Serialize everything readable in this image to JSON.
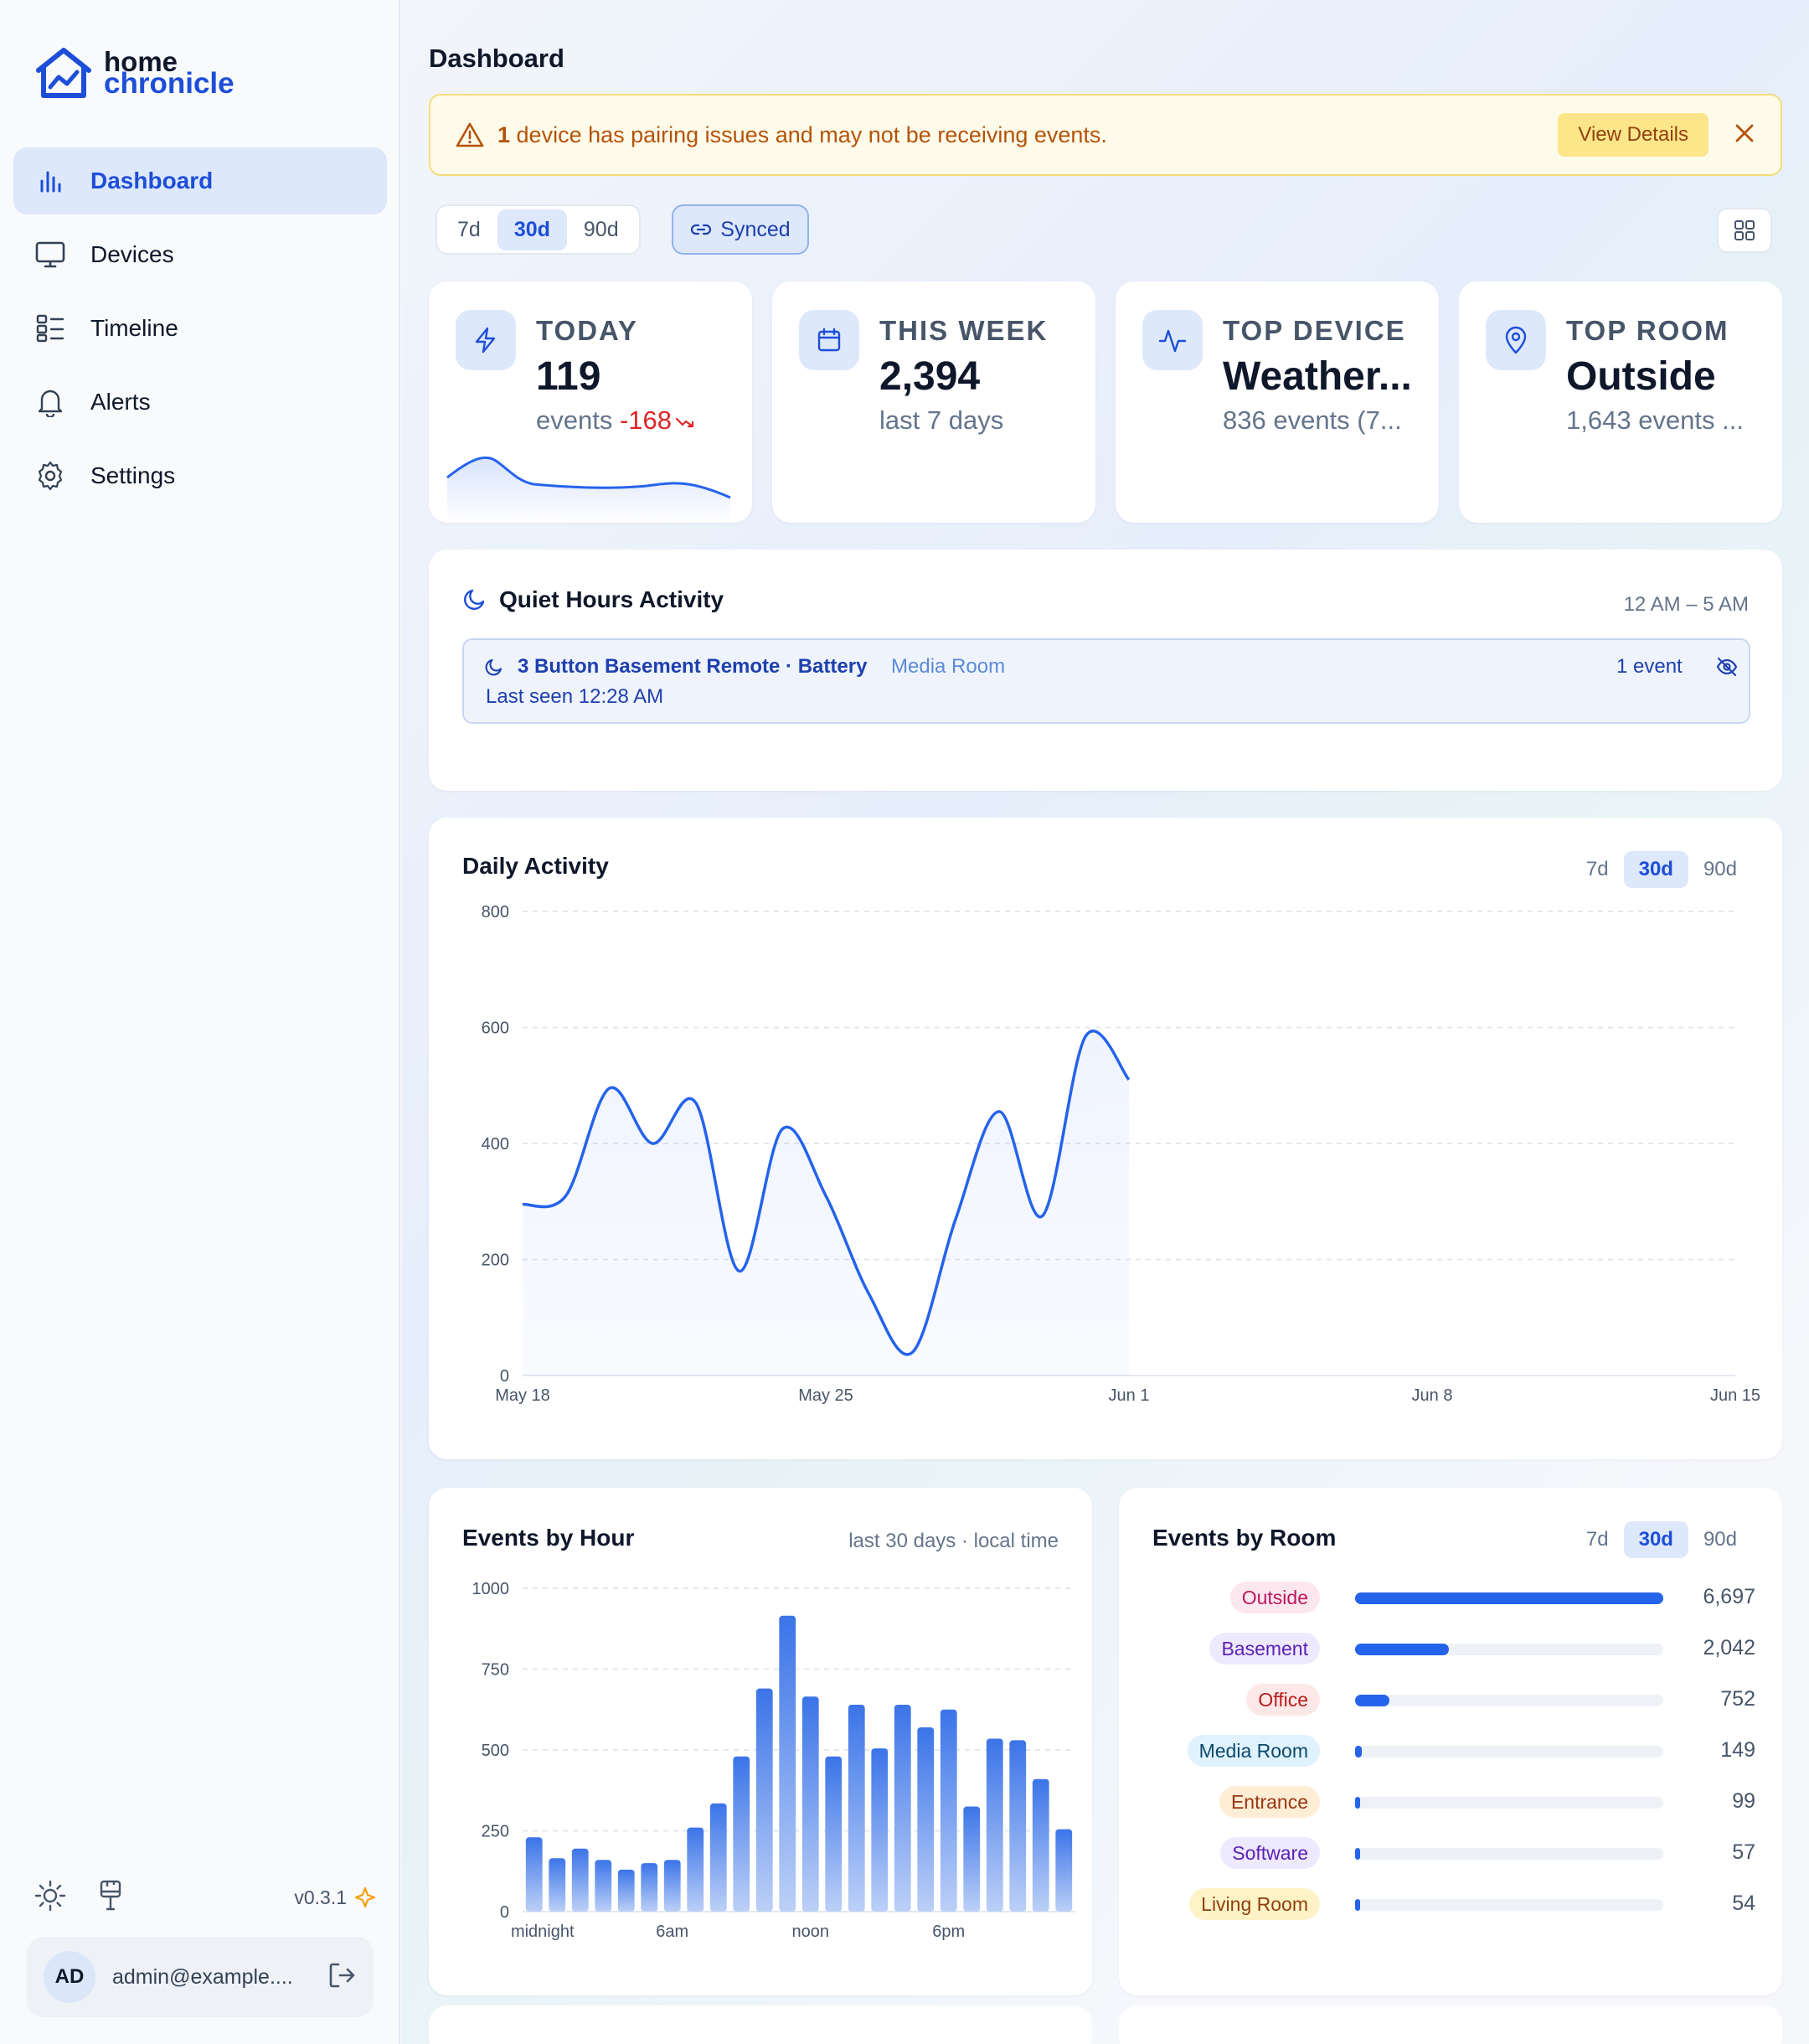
{
  "app": {
    "logo_line1": "home",
    "logo_line2": "chronicle",
    "version": "v0.3.1"
  },
  "nav": [
    {
      "label": "Dashboard",
      "icon": "bar-chart-icon",
      "active": true
    },
    {
      "label": "Devices",
      "icon": "monitor-icon",
      "active": false
    },
    {
      "label": "Timeline",
      "icon": "list-icon",
      "active": false
    },
    {
      "label": "Alerts",
      "icon": "bell-icon",
      "active": false
    },
    {
      "label": "Settings",
      "icon": "gear-icon",
      "active": false
    }
  ],
  "user": {
    "initials": "AD",
    "email": "admin@example...."
  },
  "page": {
    "title": "Dashboard"
  },
  "alert": {
    "count": "1",
    "message": " device has pairing issues and may not be receiving events.",
    "action": "View Details"
  },
  "range": {
    "options": [
      "7d",
      "30d",
      "90d"
    ],
    "selected": "30d"
  },
  "synced": {
    "label": "Synced"
  },
  "stats": [
    {
      "label": "TODAY",
      "value": "119",
      "sub": "events",
      "delta": "-168",
      "icon": "lightning-icon"
    },
    {
      "label": "THIS WEEK",
      "value": "2,394",
      "sub": "last 7 days",
      "icon": "calendar-icon"
    },
    {
      "label": "TOP DEVICE",
      "value": "Weather...",
      "sub": "836 events (7...",
      "icon": "activity-icon"
    },
    {
      "label": "TOP ROOM",
      "value": "Outside",
      "sub": "1,643 events ...",
      "icon": "map-pin-icon"
    }
  ],
  "quiet": {
    "title": "Quiet Hours Activity",
    "range": "12 AM – 5 AM",
    "device": "3 Button Basement Remote · Battery",
    "room": "Media Room",
    "last_seen": "Last seen 12:28 AM",
    "count": "1 event"
  },
  "daily": {
    "title": "Daily Activity",
    "range_options": [
      "7d",
      "30d",
      "90d"
    ],
    "range_selected": "30d"
  },
  "hourly": {
    "title": "Events by Hour",
    "subtitle": "last 30 days · local time"
  },
  "rooms": {
    "title": "Events by Room",
    "range_options": [
      "7d",
      "30d",
      "90d"
    ],
    "range_selected": "30d"
  },
  "chart_data": [
    {
      "type": "line",
      "title": "Daily Activity",
      "x_ticks": [
        "May 18",
        "May 25",
        "Jun 1",
        "Jun 8",
        "Jun 15"
      ],
      "y_ticks": [
        0,
        200,
        400,
        600,
        800
      ],
      "ylim": [
        0,
        800
      ],
      "grid": true,
      "x": [
        "May 18",
        "May 19",
        "May 20",
        "May 21",
        "May 22",
        "May 23",
        "May 24",
        "May 25",
        "May 26",
        "May 27",
        "May 28",
        "May 29",
        "May 30",
        "May 31",
        "Jun 1"
      ],
      "values": [
        295,
        310,
        495,
        400,
        470,
        180,
        425,
        310,
        140,
        40,
        270,
        455,
        275,
        585,
        510
      ],
      "color": "#2563eb"
    },
    {
      "type": "bar",
      "title": "Events by Hour",
      "categories": [
        "0",
        "1",
        "2",
        "3",
        "4",
        "5",
        "6",
        "7",
        "8",
        "9",
        "10",
        "11",
        "12",
        "13",
        "14",
        "15",
        "16",
        "17",
        "18",
        "19",
        "20",
        "21",
        "22",
        "23"
      ],
      "x_ticks": [
        "midnight",
        "6am",
        "noon",
        "6pm"
      ],
      "y_ticks": [
        0,
        250,
        500,
        750,
        1000
      ],
      "ylim": [
        0,
        1000
      ],
      "values": [
        230,
        165,
        195,
        160,
        130,
        150,
        160,
        260,
        335,
        480,
        690,
        915,
        665,
        480,
        640,
        505,
        640,
        570,
        625,
        325,
        535,
        530,
        410,
        255
      ],
      "color": "#3b74e8"
    },
    {
      "type": "bar",
      "title": "Events by Room",
      "categories": [
        "Outside",
        "Basement",
        "Office",
        "Media Room",
        "Entrance",
        "Software",
        "Living Room"
      ],
      "values": [
        6697,
        2042,
        752,
        149,
        99,
        57,
        54
      ],
      "labels": [
        "6,697",
        "2,042",
        "752",
        "149",
        "99",
        "57",
        "54"
      ],
      "pill_colors": [
        {
          "bg": "#fce7ef",
          "fg": "#be185d"
        },
        {
          "bg": "#ede9fe",
          "fg": "#5b21b6"
        },
        {
          "bg": "#fde8e8",
          "fg": "#b91c1c"
        },
        {
          "bg": "#e0f2fe",
          "fg": "#0c4a6e"
        },
        {
          "bg": "#ffedd5",
          "fg": "#9a3412"
        },
        {
          "bg": "#ede9fe",
          "fg": "#5b21b6"
        },
        {
          "bg": "#fef3c7",
          "fg": "#92400e"
        }
      ]
    }
  ]
}
